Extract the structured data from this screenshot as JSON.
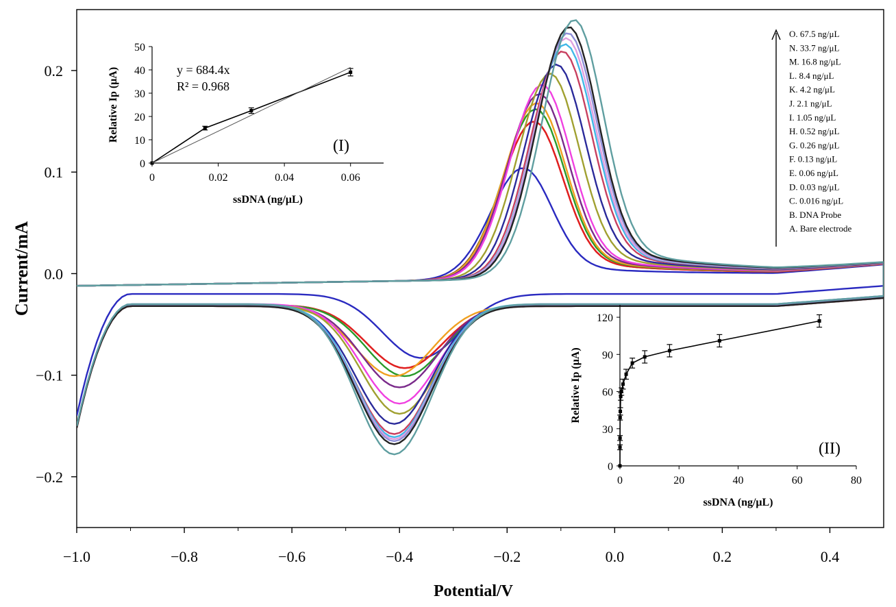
{
  "chart_data": [
    {
      "type": "line",
      "xlabel": "Potential/V",
      "ylabel": "Current/mA",
      "xlim": [
        -1.0,
        0.5
      ],
      "ylim": [
        -0.25,
        0.26
      ],
      "x_ticks": [
        -1.0,
        -0.8,
        -0.6,
        -0.4,
        -0.2,
        0.0,
        0.2,
        0.4
      ],
      "x_tick_labels": [
        "−1.0",
        "−0.8",
        "−0.6",
        "−0.4",
        "−0.2",
        "0.0",
        "0.2",
        "0.4"
      ],
      "y_ticks": [
        0.2,
        0.1,
        0.0,
        -0.1,
        -0.2
      ],
      "y_tick_labels": [
        "0.2",
        "0.1",
        "0.0",
        "−0.1",
        "−0.2"
      ],
      "legend_position": "top-right",
      "series": [
        {
          "name": "O. 67.5 ng/μL",
          "color": "#5f9ea0",
          "peak_x": -0.075,
          "peak_y": 0.25,
          "red_x": -0.37,
          "red_y": -0.178,
          "red_base": -0.03
        },
        {
          "name": "N. 33.7 ng/μL",
          "color": "#222222",
          "peak_x": -0.085,
          "peak_y": 0.243,
          "red_x": -0.37,
          "red_y": -0.168,
          "red_base": -0.032
        },
        {
          "name": "M. 16.8 ng/μL",
          "color": "#8f8fd8",
          "peak_x": -0.087,
          "peak_y": 0.237,
          "red_x": -0.37,
          "red_y": -0.165,
          "red_base": -0.031
        },
        {
          "name": "L. 8.4 ng/μL",
          "color": "#e0a0e0",
          "peak_x": -0.09,
          "peak_y": 0.232,
          "red_x": -0.37,
          "red_y": -0.163,
          "red_base": -0.032
        },
        {
          "name": "K. 4.2 ng/μL",
          "color": "#40b8e8",
          "peak_x": -0.092,
          "peak_y": 0.226,
          "red_x": -0.37,
          "red_y": -0.161,
          "red_base": -0.03
        },
        {
          "name": "J. 2.1 ng/μL",
          "color": "#c84060",
          "peak_x": -0.097,
          "peak_y": 0.219,
          "red_x": -0.37,
          "red_y": -0.158,
          "red_base": -0.032
        },
        {
          "name": "I. 1.05 ng/μL",
          "color": "#2a2a9a",
          "peak_x": -0.108,
          "peak_y": 0.206,
          "red_x": -0.37,
          "red_y": -0.148,
          "red_base": -0.031
        },
        {
          "name": "H. 0.52 ng/μL",
          "color": "#a0a030",
          "peak_x": -0.12,
          "peak_y": 0.197,
          "red_x": -0.36,
          "red_y": -0.138,
          "red_base": -0.031
        },
        {
          "name": "G. 0.26 ng/μL",
          "color": "#f040e0",
          "peak_x": -0.135,
          "peak_y": 0.186,
          "red_x": -0.36,
          "red_y": -0.128,
          "red_base": -0.03
        },
        {
          "name": "F. 0.13 ng/μL",
          "color": "#7a2a8a",
          "peak_x": -0.14,
          "peak_y": 0.177,
          "red_x": -0.36,
          "red_y": -0.112,
          "red_base": -0.031
        },
        {
          "name": "E. 0.06 ng/μL",
          "color": "#f0a020",
          "peak_x": -0.145,
          "peak_y": 0.168,
          "red_x": -0.37,
          "red_y": -0.101,
          "red_base": -0.032
        },
        {
          "name": "D. 0.03 ng/μL",
          "color": "#2a9a2a",
          "peak_x": -0.147,
          "peak_y": 0.162,
          "red_x": -0.35,
          "red_y": -0.101,
          "red_base": -0.031
        },
        {
          "name": "C. 0.016 ng/μL",
          "color": "#e02020",
          "peak_x": -0.15,
          "peak_y": 0.15,
          "red_x": -0.35,
          "red_y": -0.093,
          "red_base": -0.031
        },
        {
          "name": "B. DNA Probe",
          "color": "#e02020",
          "peak_x": -0.15,
          "peak_y": 0.15,
          "red_x": -0.35,
          "red_y": -0.093,
          "red_base": -0.031
        },
        {
          "name": "A. Bare electrode",
          "color": "#2a2ac0",
          "peak_x": -0.17,
          "peak_y": 0.104,
          "red_x": -0.32,
          "red_y": -0.083,
          "red_base": -0.02
        }
      ]
    },
    {
      "type": "line",
      "title": "(I)",
      "xlabel": "ssDNA (ng/μL)",
      "ylabel": "Relative Ip (μA)",
      "xlim": [
        0,
        0.07
      ],
      "ylim": [
        0,
        50
      ],
      "x_ticks": [
        0,
        0.02,
        0.04,
        0.06
      ],
      "x_tick_labels": [
        "0",
        "0.02",
        "0.04",
        "0.06"
      ],
      "y_ticks": [
        0,
        10,
        20,
        30,
        40,
        50
      ],
      "y_tick_labels": [
        "0",
        "10",
        "20",
        "30",
        "40",
        "50"
      ],
      "equation": "y = 684.4x",
      "r_squared": "R² = 0.968",
      "x": [
        0,
        0.016,
        0.03,
        0.06
      ],
      "values": [
        0,
        15,
        22.5,
        39
      ],
      "errors": [
        0,
        0.8,
        1.2,
        1.6
      ],
      "fit_slope": 684.4
    },
    {
      "type": "line",
      "title": "(II)",
      "xlabel": "ssDNA (ng/μL)",
      "ylabel": "Relative Ip (μA)",
      "xlim": [
        0,
        80
      ],
      "ylim": [
        0,
        130
      ],
      "x_ticks": [
        0,
        20,
        40,
        60,
        80
      ],
      "x_tick_labels": [
        "0",
        "20",
        "40",
        "60",
        "80"
      ],
      "y_ticks": [
        0,
        30,
        60,
        90,
        120
      ],
      "y_tick_labels": [
        "0",
        "30",
        "60",
        "90",
        "120"
      ],
      "x": [
        0,
        0.016,
        0.03,
        0.06,
        0.13,
        0.26,
        0.52,
        1.05,
        2.1,
        4.2,
        8.4,
        16.8,
        33.7,
        67.5
      ],
      "values": [
        0,
        15,
        22.5,
        39,
        44,
        56,
        60,
        66,
        74,
        83,
        88,
        93,
        101,
        117
      ],
      "errors": [
        0,
        2,
        2,
        2,
        3,
        3,
        3,
        4,
        4,
        4,
        5,
        5,
        5,
        5
      ]
    }
  ]
}
